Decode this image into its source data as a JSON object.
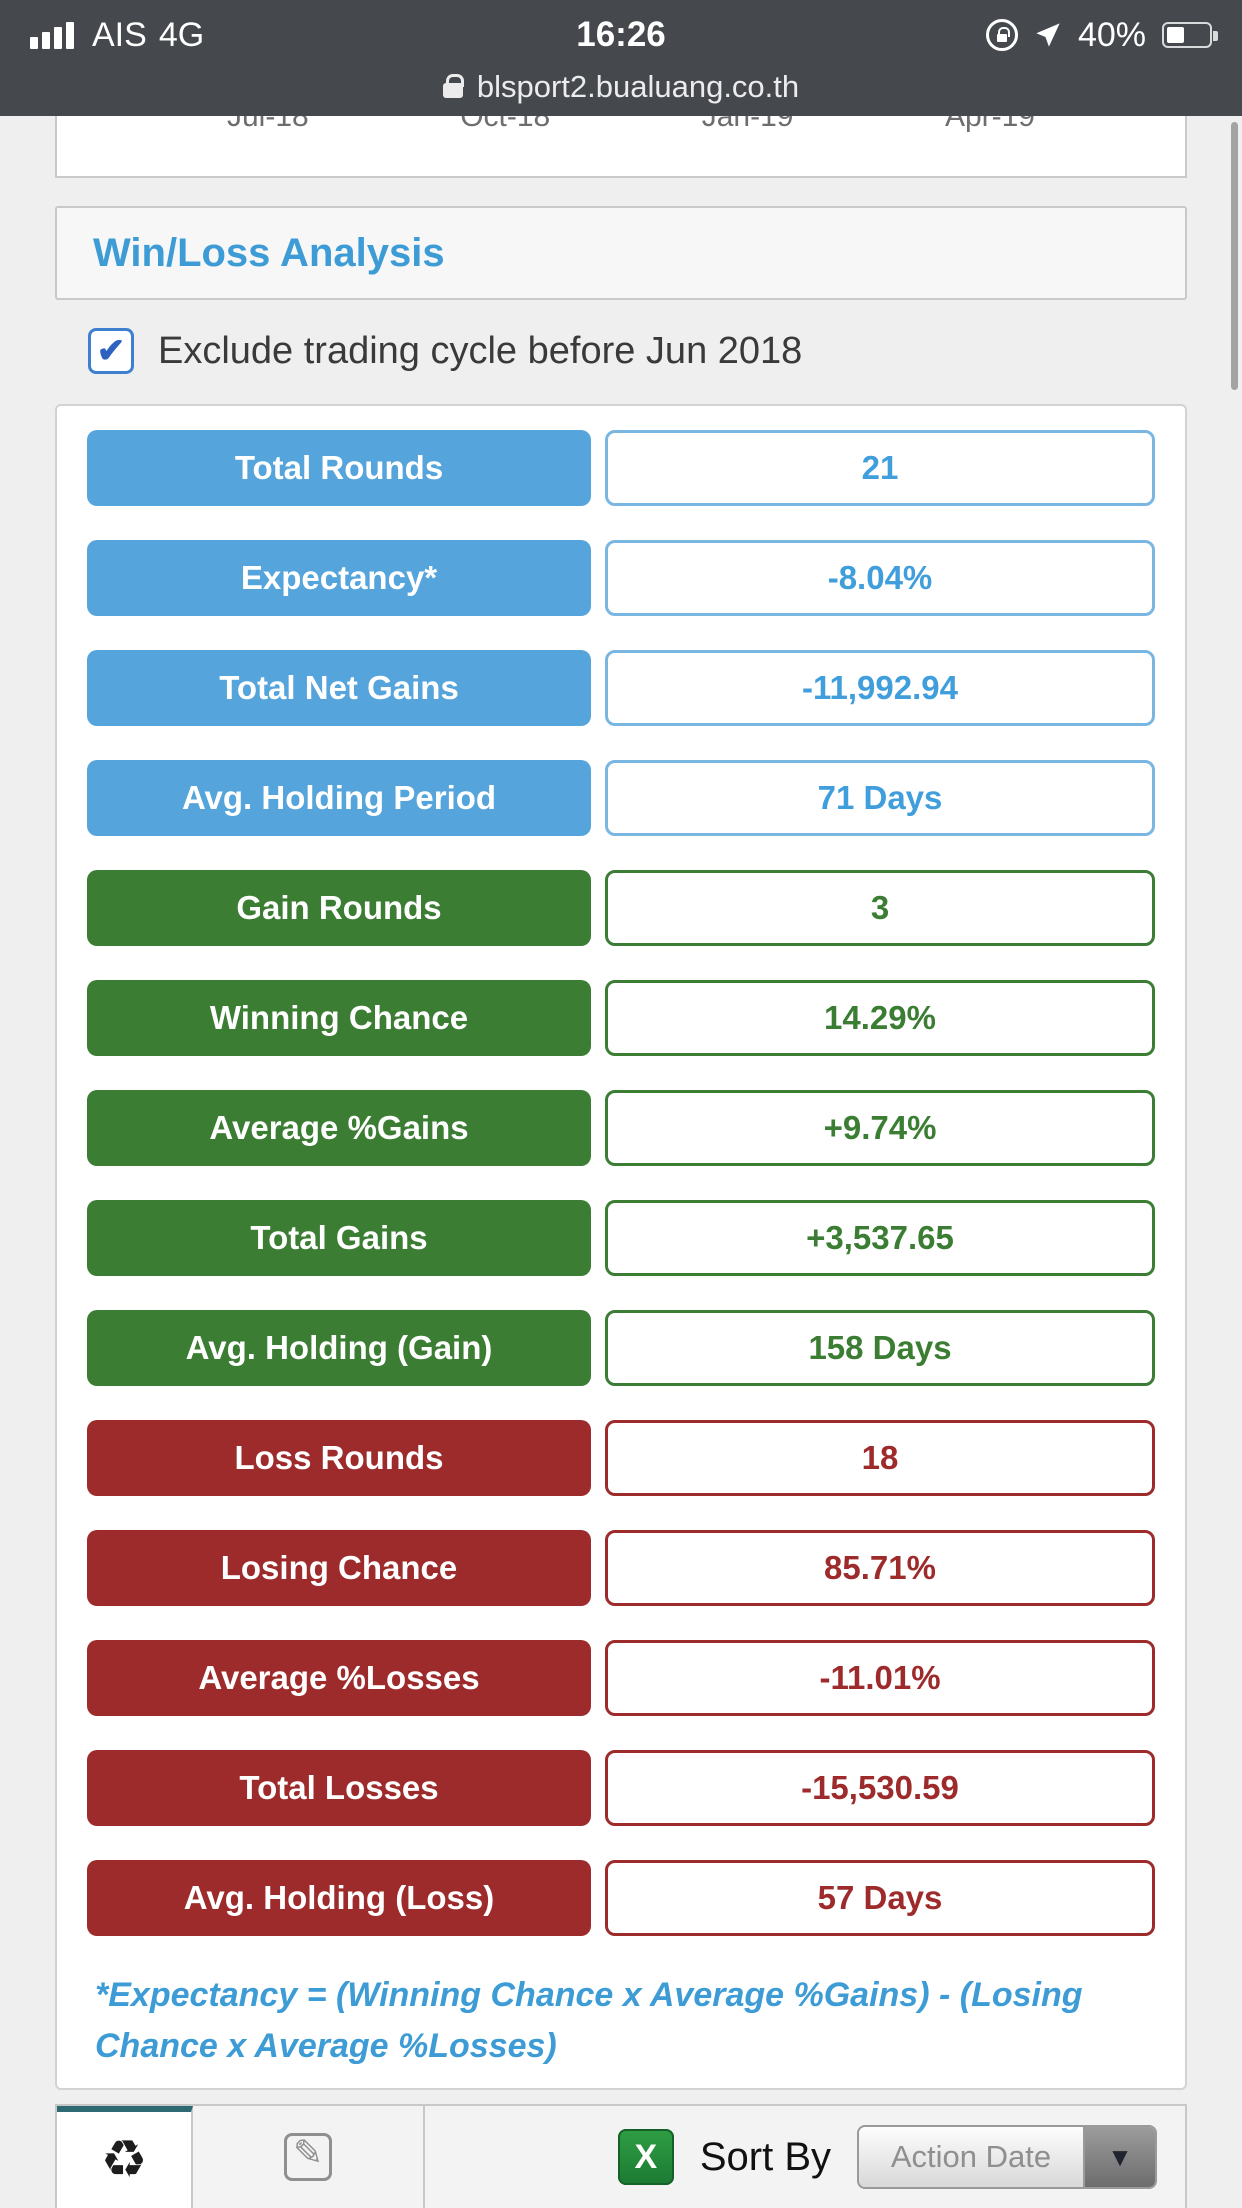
{
  "status_bar": {
    "carrier": "AIS",
    "network": "4G",
    "time": "16:26",
    "battery": "40%",
    "url": "blsport2.bualuang.co.th"
  },
  "chart_axis": [
    "Jul-18",
    "Oct-18",
    "Jan-19",
    "Apr-19"
  ],
  "panel": {
    "title": "Win/Loss Analysis",
    "checkbox_checked": "✔",
    "checkbox_label": "Exclude trading cycle before Jun 2018",
    "rows": [
      {
        "label": "Total Rounds",
        "value": "21",
        "color": "blue"
      },
      {
        "label": "Expectancy*",
        "value": "-8.04%",
        "color": "blue"
      },
      {
        "label": "Total Net Gains",
        "value": "-11,992.94",
        "color": "blue"
      },
      {
        "label": "Avg. Holding Period",
        "value": "71 Days",
        "color": "blue"
      },
      {
        "label": "Gain Rounds",
        "value": "3",
        "color": "green"
      },
      {
        "label": "Winning Chance",
        "value": "14.29%",
        "color": "green"
      },
      {
        "label": "Average %Gains",
        "value": "+9.74%",
        "color": "green"
      },
      {
        "label": "Total Gains",
        "value": "+3,537.65",
        "color": "green"
      },
      {
        "label": "Avg. Holding (Gain)",
        "value": "158 Days",
        "color": "green"
      },
      {
        "label": "Loss Rounds",
        "value": "18",
        "color": "red"
      },
      {
        "label": "Losing Chance",
        "value": "85.71%",
        "color": "red"
      },
      {
        "label": "Average %Losses",
        "value": "-11.01%",
        "color": "red"
      },
      {
        "label": "Total Losses",
        "value": "-15,530.59",
        "color": "red"
      },
      {
        "label": "Avg. Holding (Loss)",
        "value": "57 Days",
        "color": "red"
      }
    ],
    "footnote": "*Expectancy = (Winning Chance x Average %Gains) - (Losing Chance x Average %Losses)"
  },
  "toolbar": {
    "recycle_icon": "♻",
    "compose_icon": "✎",
    "excel_icon": "X",
    "sort_by": "Sort By",
    "sort_option": "Action Date",
    "dropdown_arrow": "▼"
  },
  "colors": {
    "blue_pill": "#55a5dc",
    "blue_text": "#3f9edb",
    "green": "#3a7d33",
    "red": "#9e2b2b",
    "link_blue": "#3d9bd5",
    "statusbar_bg": "#45484d",
    "tab_accent": "#2d6a73"
  }
}
